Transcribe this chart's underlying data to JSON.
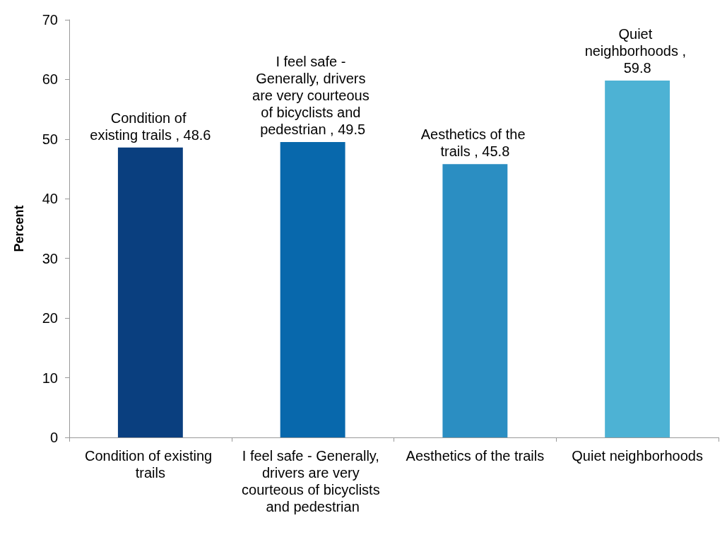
{
  "chart_data": {
    "type": "bar",
    "ylabel": "Percent",
    "categories": [
      "Condition of existing trails",
      "I feel safe - Generally, drivers are very courteous of bicyclists and pedestrian",
      "Aesthetics of the trails",
      "Quiet neighborhoods"
    ],
    "values": [
      48.6,
      49.5,
      45.8,
      59.8
    ],
    "colors": [
      "#0a3f7f",
      "#0868ac",
      "#2b8ec2",
      "#4db2d4"
    ],
    "value_labels": [
      "Condition of existing trails , 48.6",
      "I feel safe - Generally, drivers are very courteous of bicyclists and pedestrian , 49.5",
      "Aesthetics of the trails , 45.8",
      "Quiet neighborhoods , 59.8"
    ],
    "ylim": [
      0,
      70
    ],
    "yticks": [
      0,
      10,
      20,
      30,
      40,
      50,
      60,
      70
    ]
  }
}
